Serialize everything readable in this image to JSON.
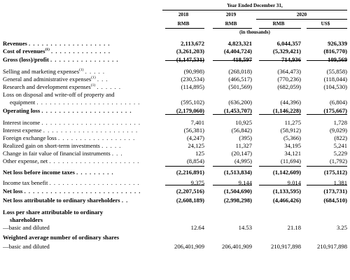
{
  "header": {
    "period": "Year Ended December 31,",
    "years": [
      "2018",
      "2019",
      "2020",
      ""
    ],
    "currencies": [
      "RMB",
      "RMB",
      "RMB",
      "US$"
    ],
    "units": "(in thousands)"
  },
  "rows": [
    {
      "label": "Revenues",
      "dots": ". . . . . . . . . . . . . . . . . . .",
      "values": [
        "2,113,672",
        "4,823,321",
        "6,044,357",
        "926,339"
      ],
      "bold": true
    },
    {
      "label": "Cost of revenues",
      "sup": "(1)",
      "dots": ". . . . . . . . . . . . . .",
      "values": [
        "(3,261,203)",
        "(4,404,724)",
        "(5,329,421)",
        "(816,770)"
      ],
      "bold": true
    },
    {
      "label": "Gross (loss)/profit",
      "dots": ". . . . . . . . . . . . . . . .",
      "values": [
        "(1,147,531)",
        "418,597",
        "714,936",
        "109,569"
      ],
      "bold": true
    },
    {
      "label": "Selling and marketing expenses",
      "sup": "(1)",
      "dots": ". . . . .",
      "values": [
        "(90,998)",
        "(268,018)",
        "(364,473)",
        "(55,858)"
      ]
    },
    {
      "label": "General and administrative expenses",
      "sup": "(1)",
      "dots": ". . .",
      "values": [
        "(230,534)",
        "(466,517)",
        "(770,236)",
        "(118,044)"
      ]
    },
    {
      "label": "Research and development expenses",
      "sup": "(1)",
      "dots": ". . . . . .",
      "values": [
        "(114,895)",
        "(501,569)",
        "(682,059)",
        "(104,530)"
      ]
    },
    {
      "label": "Loss on disposal and write-off of property and",
      "values": [
        "",
        "",
        "",
        ""
      ]
    },
    {
      "label": "equipment",
      "indent": true,
      "dots": ". . . . . . . . . . . . . . . . . . . . . . . .",
      "values": [
        "(595,102)",
        "(636,200)",
        "(44,396)",
        "(6,804)"
      ]
    },
    {
      "label": "Operating loss",
      "dots": ". . . . . . . . . . . . . . . . . . . . .",
      "values": [
        "(2,179,060)",
        "(1,453,707)",
        "(1,146,228)",
        "(175,667)"
      ],
      "bold": true
    },
    {
      "label": "Interest income",
      "dots": ". . . . . . . . . . . . . . . . . . . . . . .",
      "values": [
        "7,401",
        "10,925",
        "11,275",
        "1,728"
      ]
    },
    {
      "label": "Interest expense",
      "dots": ". . . . . . . . . . . . . . . . . . . . . .",
      "values": [
        "(56,381)",
        "(56,842)",
        "(58,912)",
        "(9,029)"
      ]
    },
    {
      "label": "Foreign exchange loss",
      "dots": ". . . . . . . . . . . . . . . . . .",
      "values": [
        "(4,247)",
        "(395)",
        "(5,366)",
        "(822)"
      ]
    },
    {
      "label": "Realized gain on short-term investments",
      "dots": ". . . . .",
      "values": [
        "24,125",
        "11,327",
        "34,195",
        "5,241"
      ]
    },
    {
      "label": "Change in fair value of financial instruments",
      "dots": ". . .",
      "values": [
        "125",
        "(20,147)",
        "34,121",
        "5,229"
      ]
    },
    {
      "label": "Other expense, net",
      "dots": ". . . . . . . . . . . . . . . . . . . . .",
      "values": [
        "(8,854)",
        "(4,995)",
        "(11,694)",
        "(1,792)"
      ]
    },
    {
      "label": "Net loss before income taxes",
      "dots": ". . . . . . . . .",
      "values": [
        "(2,216,891)",
        "(1,513,834)",
        "(1,142,609)",
        "(175,112)"
      ],
      "bold": true
    },
    {
      "label": "Income tax benefit",
      "dots": ". . . . . . . . . . . . . . . . . . . . .",
      "values": [
        "9,375",
        "9,144",
        "9,014",
        "1,381"
      ]
    },
    {
      "label": "Net loss",
      "dots": ". . . . . . . . . . . . . . . . . . . . . . . . . . .",
      "values": [
        "(2,207,516)",
        "(1,504,690)",
        "(1,133,595)",
        "(173,731)"
      ],
      "bold": true
    },
    {
      "label": "Net loss attributable to ordinary shareholders",
      "dots": ". .",
      "values": [
        "(2,608,189)",
        "(2,998,298)",
        "(4,466,426)",
        "(684,510)"
      ],
      "bold": true
    },
    {
      "label": "Loss per share attributable to ordinary",
      "values": [
        "",
        "",
        "",
        ""
      ],
      "bold": true
    },
    {
      "label": "shareholders",
      "indent": true,
      "values": [
        "",
        "",
        "",
        ""
      ],
      "bold": true
    },
    {
      "label": "—basic and diluted",
      "values": [
        "12.64",
        "14.53",
        "21.18",
        "3.25"
      ]
    },
    {
      "label": "Weighted average number of ordinary shares",
      "values": [
        "",
        "",
        "",
        ""
      ],
      "bold": true
    },
    {
      "label": "—basic and diluted",
      "values": [
        "206,401,909",
        "206,401,909",
        "210,917,898",
        "210,917,898"
      ]
    }
  ]
}
